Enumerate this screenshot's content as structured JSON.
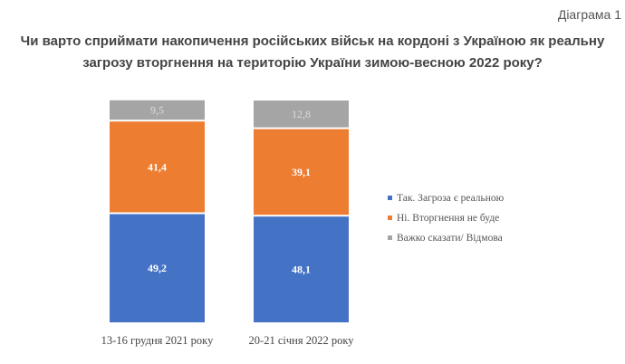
{
  "header": {
    "diagram_label": "Діаграма 1"
  },
  "chart_data": {
    "type": "bar",
    "stacked": true,
    "title_line1": "Чи варто сприймати накопичення російських військ на кордоні з Україною як реальну",
    "title_line2": "загрозу вторгнення на територію України зимою-весною 2022 року?",
    "categories": [
      "13-16 грудня 2021 року",
      "20-21 січня 2022 року"
    ],
    "series": [
      {
        "name": "Так. Загроза є реальною",
        "values": [
          49.2,
          48.1
        ],
        "labels": [
          "49,2",
          "48,1"
        ],
        "color": "#4472c4"
      },
      {
        "name": "Ні. Вторгнення не буде",
        "values": [
          41.4,
          39.1
        ],
        "labels": [
          "41,4",
          "39,1"
        ],
        "color": "#ed7d31"
      },
      {
        "name": "Важко сказати/ Відмова",
        "values": [
          9.5,
          12.8
        ],
        "labels": [
          "9,5",
          "12,8"
        ],
        "color": "#a5a5a5"
      }
    ],
    "ylim": [
      0,
      100
    ],
    "legend": "right"
  }
}
